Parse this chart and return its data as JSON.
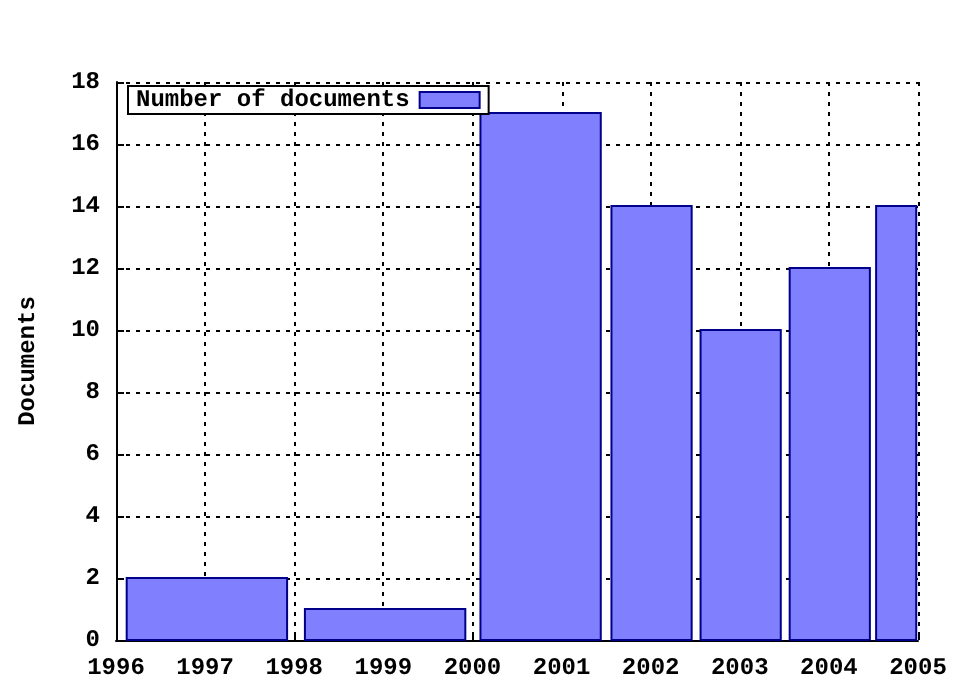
{
  "chart_data": {
    "type": "histogram",
    "ylabel": "Documents",
    "bins": [
      1996,
      1998,
      2000,
      2001.5,
      2002.5,
      2003.5,
      2004.5,
      2005
    ],
    "series": [
      {
        "name": "Number of documents",
        "color": "#8080ff",
        "values": [
          2,
          1,
          17,
          14,
          10,
          12,
          14
        ]
      }
    ],
    "xlim": [
      1996,
      2005
    ],
    "xticks": [
      1996,
      1997,
      1998,
      1999,
      2000,
      2001,
      2002,
      2003,
      2004,
      2005
    ],
    "ylim": [
      0,
      18
    ],
    "yticks": [
      0,
      2,
      4,
      6,
      8,
      10,
      12,
      14,
      16,
      18
    ],
    "grid": true,
    "legend": "top left"
  }
}
